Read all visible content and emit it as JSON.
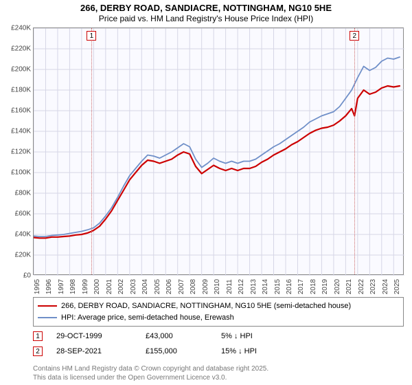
{
  "title_line1": "266, DERBY ROAD, SANDIACRE, NOTTINGHAM, NG10 5HE",
  "title_line2": "Price paid vs. HM Land Registry's House Price Index (HPI)",
  "chart": {
    "type": "line",
    "background_color": "#fafaff",
    "grid_color": "#d6d6e6",
    "border_color": "#888888",
    "x_min": 1995,
    "x_max": 2025.9,
    "y_min": 0,
    "y_max": 240000,
    "y_ticks": [
      0,
      20000,
      40000,
      60000,
      80000,
      100000,
      120000,
      140000,
      160000,
      180000,
      200000,
      220000,
      240000
    ],
    "y_tick_labels": [
      "£0",
      "£20K",
      "£40K",
      "£60K",
      "£80K",
      "£100K",
      "£120K",
      "£140K",
      "£160K",
      "£180K",
      "£200K",
      "£220K",
      "£240K"
    ],
    "x_ticks": [
      1995,
      1996,
      1997,
      1998,
      1999,
      2000,
      2001,
      2002,
      2003,
      2004,
      2005,
      2006,
      2007,
      2008,
      2009,
      2010,
      2011,
      2012,
      2013,
      2014,
      2015,
      2016,
      2017,
      2018,
      2019,
      2020,
      2021,
      2022,
      2023,
      2024,
      2025
    ],
    "x_tick_labels": [
      "1995",
      "1996",
      "1997",
      "1998",
      "1999",
      "2000",
      "2001",
      "2002",
      "2003",
      "2004",
      "2005",
      "2006",
      "2007",
      "2008",
      "2009",
      "2010",
      "2011",
      "2012",
      "2013",
      "2014",
      "2015",
      "2016",
      "2017",
      "2018",
      "2019",
      "2020",
      "2021",
      "2022",
      "2023",
      "2024",
      "2025"
    ],
    "series": [
      {
        "name": "price_paid",
        "color": "#cc0000",
        "line_width": 2.2,
        "points": [
          [
            1995,
            37000
          ],
          [
            1995.5,
            36500
          ],
          [
            1996,
            36500
          ],
          [
            1996.5,
            37500
          ],
          [
            1997,
            37500
          ],
          [
            1997.5,
            38000
          ],
          [
            1998,
            38500
          ],
          [
            1998.5,
            39500
          ],
          [
            1999,
            40000
          ],
          [
            1999.5,
            41500
          ],
          [
            1999.83,
            43000
          ],
          [
            2000,
            44000
          ],
          [
            2000.5,
            48000
          ],
          [
            2001,
            55000
          ],
          [
            2001.5,
            63000
          ],
          [
            2002,
            73000
          ],
          [
            2002.5,
            83000
          ],
          [
            2003,
            93000
          ],
          [
            2003.5,
            100000
          ],
          [
            2004,
            107000
          ],
          [
            2004.5,
            112000
          ],
          [
            2005,
            111000
          ],
          [
            2005.5,
            109000
          ],
          [
            2006,
            111000
          ],
          [
            2006.5,
            113000
          ],
          [
            2007,
            117000
          ],
          [
            2007.5,
            120000
          ],
          [
            2008,
            118000
          ],
          [
            2008.5,
            106000
          ],
          [
            2009,
            99000
          ],
          [
            2009.5,
            103000
          ],
          [
            2010,
            107000
          ],
          [
            2010.5,
            104000
          ],
          [
            2011,
            102000
          ],
          [
            2011.5,
            104000
          ],
          [
            2012,
            102000
          ],
          [
            2012.5,
            104000
          ],
          [
            2013,
            104000
          ],
          [
            2013.5,
            106000
          ],
          [
            2014,
            110000
          ],
          [
            2014.5,
            113000
          ],
          [
            2015,
            117000
          ],
          [
            2015.5,
            120000
          ],
          [
            2016,
            123000
          ],
          [
            2016.5,
            127000
          ],
          [
            2017,
            130000
          ],
          [
            2017.5,
            134000
          ],
          [
            2018,
            138000
          ],
          [
            2018.5,
            141000
          ],
          [
            2019,
            143000
          ],
          [
            2019.5,
            144000
          ],
          [
            2020,
            146000
          ],
          [
            2020.5,
            150000
          ],
          [
            2021,
            155000
          ],
          [
            2021.5,
            162000
          ],
          [
            2021.74,
            155000
          ],
          [
            2022,
            172000
          ],
          [
            2022.5,
            180000
          ],
          [
            2023,
            176000
          ],
          [
            2023.5,
            178000
          ],
          [
            2024,
            182000
          ],
          [
            2024.5,
            184000
          ],
          [
            2025,
            183000
          ],
          [
            2025.5,
            184000
          ]
        ]
      },
      {
        "name": "hpi",
        "color": "#6f8fc8",
        "line_width": 1.8,
        "points": [
          [
            1995,
            38500
          ],
          [
            1995.5,
            38000
          ],
          [
            1996,
            38000
          ],
          [
            1996.5,
            39000
          ],
          [
            1997,
            39500
          ],
          [
            1997.5,
            40000
          ],
          [
            1998,
            41000
          ],
          [
            1998.5,
            42000
          ],
          [
            1999,
            43000
          ],
          [
            1999.5,
            44500
          ],
          [
            2000,
            46500
          ],
          [
            2000.5,
            51000
          ],
          [
            2001,
            58000
          ],
          [
            2001.5,
            66000
          ],
          [
            2002,
            76000
          ],
          [
            2002.5,
            87000
          ],
          [
            2003,
            97000
          ],
          [
            2003.5,
            104000
          ],
          [
            2004,
            111000
          ],
          [
            2004.5,
            117000
          ],
          [
            2005,
            116000
          ],
          [
            2005.5,
            114000
          ],
          [
            2006,
            117000
          ],
          [
            2006.5,
            120000
          ],
          [
            2007,
            124000
          ],
          [
            2007.5,
            128000
          ],
          [
            2008,
            125000
          ],
          [
            2008.5,
            113000
          ],
          [
            2009,
            105000
          ],
          [
            2009.5,
            109000
          ],
          [
            2010,
            114000
          ],
          [
            2010.5,
            111000
          ],
          [
            2011,
            109000
          ],
          [
            2011.5,
            111000
          ],
          [
            2012,
            109000
          ],
          [
            2012.5,
            111000
          ],
          [
            2013,
            111000
          ],
          [
            2013.5,
            113000
          ],
          [
            2014,
            117000
          ],
          [
            2014.5,
            121000
          ],
          [
            2015,
            125000
          ],
          [
            2015.5,
            128000
          ],
          [
            2016,
            132000
          ],
          [
            2016.5,
            136000
          ],
          [
            2017,
            140000
          ],
          [
            2017.5,
            144000
          ],
          [
            2018,
            149000
          ],
          [
            2018.5,
            152000
          ],
          [
            2019,
            155000
          ],
          [
            2019.5,
            157000
          ],
          [
            2020,
            159000
          ],
          [
            2020.5,
            164000
          ],
          [
            2021,
            172000
          ],
          [
            2021.5,
            180000
          ],
          [
            2022,
            192000
          ],
          [
            2022.5,
            203000
          ],
          [
            2023,
            199000
          ],
          [
            2023.5,
            202000
          ],
          [
            2024,
            208000
          ],
          [
            2024.5,
            211000
          ],
          [
            2025,
            210000
          ],
          [
            2025.5,
            212000
          ]
        ]
      }
    ],
    "markers": [
      {
        "label": "1",
        "x": 1999.83
      },
      {
        "label": "2",
        "x": 2021.74
      }
    ]
  },
  "legend": {
    "items": [
      {
        "color": "#cc0000",
        "width": 2.5,
        "label": "266, DERBY ROAD, SANDIACRE, NOTTINGHAM, NG10 5HE (semi-detached house)"
      },
      {
        "color": "#6f8fc8",
        "width": 2,
        "label": "HPI: Average price, semi-detached house, Erewash"
      }
    ]
  },
  "events": [
    {
      "marker": "1",
      "date": "29-OCT-1999",
      "price": "£43,000",
      "pct": "5% ↓ HPI"
    },
    {
      "marker": "2",
      "date": "28-SEP-2021",
      "price": "£155,000",
      "pct": "15% ↓ HPI"
    }
  ],
  "footer_l1": "Contains HM Land Registry data © Crown copyright and database right 2025.",
  "footer_l2": "This data is licensed under the Open Government Licence v3.0."
}
